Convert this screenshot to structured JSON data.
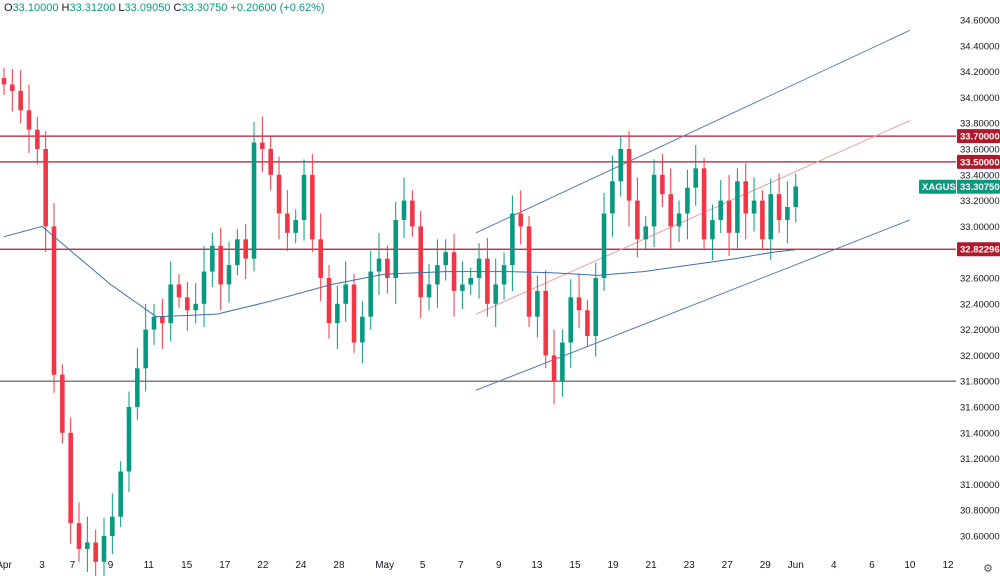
{
  "header": {
    "open_label": "O",
    "open": "33.10000",
    "high_label": "H",
    "high": "33.31200",
    "low_label": "L",
    "low": "33.09050",
    "close_label": "C",
    "close": "33.30750",
    "change": "+0.20600 (+0.62%)"
  },
  "colors": {
    "up": "#089981",
    "down": "#f23645",
    "resistance": "#b2182b",
    "support_dark": "#555555",
    "channel": "#5b7bbd",
    "ma": "#3f6ea8",
    "midline": "#e8a0a0",
    "last_price_badge": "#089981",
    "bg": "#ffffff"
  },
  "chart_data": {
    "type": "candlestick",
    "symbol": "XAGUSD",
    "y_axis": {
      "min": 30.5,
      "max": 34.7,
      "ticks": [
        "34.60000",
        "34.40000",
        "34.20000",
        "34.00000",
        "33.80000",
        "33.60000",
        "33.40000",
        "33.20000",
        "33.00000",
        "32.80000",
        "32.60000",
        "32.40000",
        "32.20000",
        "32.00000",
        "31.80000",
        "31.60000",
        "31.40000",
        "31.20000",
        "31.00000",
        "30.80000",
        "30.60000"
      ]
    },
    "x_axis": {
      "index_range": [
        0,
        110
      ],
      "labels": [
        {
          "text": "Apr",
          "i": 0
        },
        {
          "text": "3",
          "i": 5
        },
        {
          "text": "7",
          "i": 9
        },
        {
          "text": "9",
          "i": 14
        },
        {
          "text": "11",
          "i": 19
        },
        {
          "text": "15",
          "i": 24
        },
        {
          "text": "17",
          "i": 29
        },
        {
          "text": "22",
          "i": 34
        },
        {
          "text": "24",
          "i": 39
        },
        {
          "text": "28",
          "i": 44
        },
        {
          "text": "May",
          "i": 50
        },
        {
          "text": "5",
          "i": 55
        },
        {
          "text": "7",
          "i": 60
        },
        {
          "text": "9",
          "i": 65
        },
        {
          "text": "13",
          "i": 70
        },
        {
          "text": "15",
          "i": 75
        },
        {
          "text": "19",
          "i": 80
        },
        {
          "text": "21",
          "i": 85
        },
        {
          "text": "23",
          "i": 90
        },
        {
          "text": "27",
          "i": 95
        },
        {
          "text": "29",
          "i": 100
        },
        {
          "text": "Jun",
          "i": 104
        },
        {
          "text": "4",
          "i": 109
        },
        {
          "text": "6",
          "i": 114
        },
        {
          "text": "10",
          "i": 119
        },
        {
          "text": "12",
          "i": 124
        }
      ]
    },
    "closes": [
      34.1,
      34.05,
      33.9,
      33.75,
      33.6,
      33.0,
      31.85,
      31.4,
      30.7,
      30.5,
      30.55,
      30.4,
      30.6,
      30.75,
      31.1,
      31.6,
      31.9,
      32.2,
      32.3,
      32.25,
      32.55,
      32.45,
      32.35,
      32.4,
      32.65,
      32.85,
      32.55,
      32.7,
      32.9,
      32.75,
      33.65,
      33.6,
      33.4,
      33.1,
      32.95,
      33.05,
      33.4,
      32.9,
      32.6,
      32.25,
      32.4,
      32.55,
      32.1,
      32.3,
      32.65,
      32.75,
      32.6,
      33.05,
      33.2,
      33.0,
      32.45,
      32.55,
      32.7,
      32.8,
      32.5,
      32.55,
      32.6,
      32.75,
      32.4,
      32.55,
      32.7,
      33.1,
      33.0,
      32.3,
      32.5,
      32.0,
      31.8,
      32.1,
      32.45,
      32.35,
      32.15,
      32.6,
      33.1,
      33.35,
      33.6,
      33.2,
      32.9,
      33.0,
      33.4,
      33.25,
      33.0,
      33.1,
      33.3,
      33.45,
      32.9,
      33.05,
      33.2,
      32.95,
      33.35,
      33.1,
      33.2,
      32.9,
      33.25,
      33.05,
      33.15,
      33.31
    ],
    "ma_points": [
      [
        0,
        32.92
      ],
      [
        5,
        33.0
      ],
      [
        9,
        32.8
      ],
      [
        14,
        32.55
      ],
      [
        20,
        32.3
      ],
      [
        28,
        32.32
      ],
      [
        35,
        32.42
      ],
      [
        43,
        32.55
      ],
      [
        50,
        32.63
      ],
      [
        58,
        32.65
      ],
      [
        66,
        32.65
      ],
      [
        72,
        32.64
      ],
      [
        78,
        32.62
      ],
      [
        84,
        32.65
      ],
      [
        90,
        32.7
      ],
      [
        96,
        32.75
      ],
      [
        101,
        32.8
      ],
      [
        104,
        32.82
      ]
    ],
    "horizontal_levels": [
      {
        "name": "resistance-33.7",
        "price": 33.7,
        "label": "33.70000",
        "style": "resistance"
      },
      {
        "name": "resistance-33.5",
        "price": 33.5,
        "label": "33.50000",
        "style": "resistance"
      },
      {
        "name": "support-32.82",
        "price": 32.82296,
        "label": "32.82296",
        "style": "resistance"
      },
      {
        "name": "support-31.8",
        "price": 31.8,
        "label": "",
        "style": "support_dark"
      }
    ],
    "channel_lines": [
      {
        "name": "channel-upper",
        "from": [
          62,
          32.95
        ],
        "to": [
          119,
          34.52
        ],
        "style": "channel"
      },
      {
        "name": "channel-lower",
        "from": [
          62,
          31.73
        ],
        "to": [
          119,
          33.05
        ],
        "style": "channel"
      },
      {
        "name": "channel-mid",
        "from": [
          62,
          32.32
        ],
        "to": [
          119,
          33.82
        ],
        "style": "midline"
      }
    ],
    "last_price": {
      "label": "XAGUSD",
      "value": "33.30750",
      "price": 33.3075
    }
  },
  "icons": {
    "settings": "gear-icon",
    "settings_glyph": "⚙"
  }
}
